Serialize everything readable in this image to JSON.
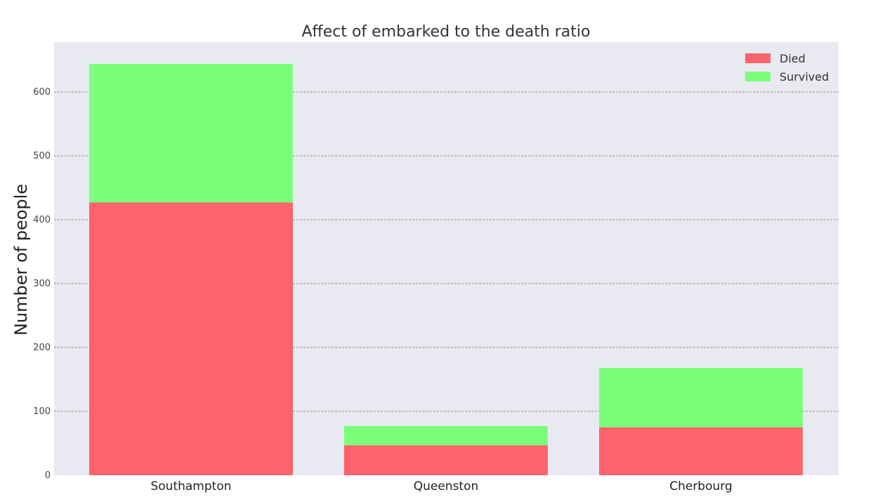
{
  "chart_data": {
    "type": "bar",
    "stacked": true,
    "title": "Affect of embarked to the death ratio",
    "xlabel": "",
    "ylabel": "Number of people",
    "categories": [
      "Southampton",
      "Queenston",
      "Cherbourg"
    ],
    "series": [
      {
        "name": "Died",
        "values": [
          427,
          47,
          75
        ],
        "color": "#ff636b"
      },
      {
        "name": "Survived",
        "values": [
          217,
          30,
          93
        ],
        "color": "#7bff7b"
      }
    ],
    "ylim": [
      0,
      650
    ],
    "yticks": [
      0,
      100,
      200,
      300,
      400,
      500,
      600
    ],
    "grid": "y-dashed",
    "legend": "top-right",
    "background": "#e9e9f1"
  }
}
